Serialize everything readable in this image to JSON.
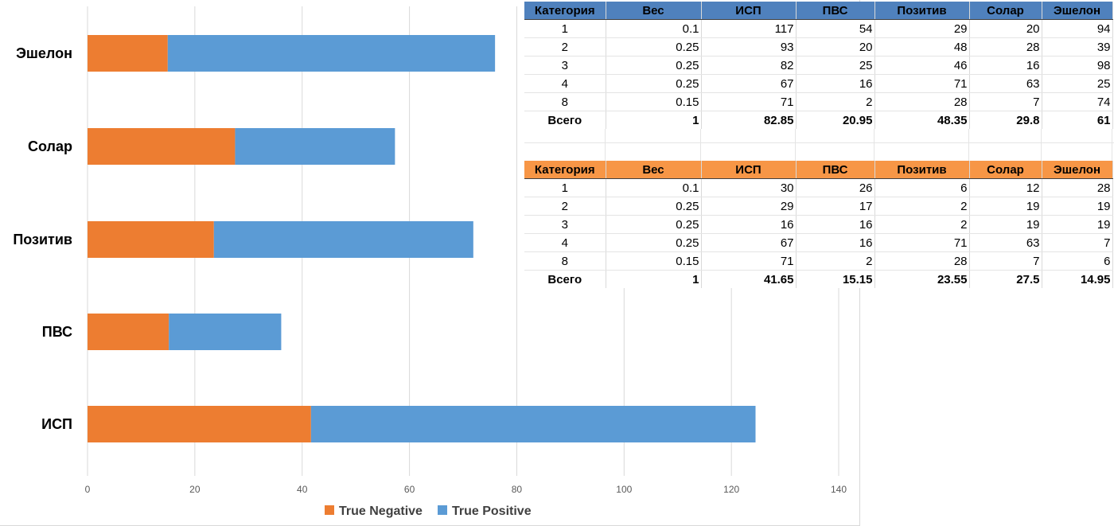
{
  "chart_data": {
    "type": "bar",
    "orientation": "horizontal",
    "stacked": true,
    "categories": [
      "ИСП",
      "ПВС",
      "Позитив",
      "Солар",
      "Эшелон"
    ],
    "series": [
      {
        "name": "True Negative",
        "values": [
          41.65,
          15.15,
          23.55,
          27.5,
          14.95
        ],
        "color": "#ed7d31"
      },
      {
        "name": "True Positive",
        "values": [
          82.85,
          20.95,
          48.35,
          29.8,
          61
        ],
        "color": "#5b9bd5"
      }
    ],
    "xlim": [
      0,
      140
    ],
    "xticks": [
      "0",
      "20",
      "40",
      "60",
      "80",
      "100",
      "120",
      "140"
    ],
    "grid": "vertical",
    "legend_position": "bottom"
  },
  "tables": [
    {
      "header_color": "#4f81bd",
      "columns": [
        "Категория",
        "Вес",
        "ИСП",
        "ПВС",
        "Позитив",
        "Солар",
        "Эшелон"
      ],
      "rows": [
        [
          "1",
          "0.1",
          "117",
          "54",
          "29",
          "20",
          "94"
        ],
        [
          "2",
          "0.25",
          "93",
          "20",
          "48",
          "28",
          "39"
        ],
        [
          "3",
          "0.25",
          "82",
          "25",
          "46",
          "16",
          "98"
        ],
        [
          "4",
          "0.25",
          "67",
          "16",
          "71",
          "63",
          "25"
        ],
        [
          "8",
          "0.15",
          "71",
          "2",
          "28",
          "7",
          "74"
        ]
      ],
      "total": [
        "Всего",
        "1",
        "82.85",
        "20.95",
        "48.35",
        "29.8",
        "61"
      ]
    },
    {
      "header_color": "#f79646",
      "columns": [
        "Категория",
        "Вес",
        "ИСП",
        "ПВС",
        "Позитив",
        "Солар",
        "Эшелон"
      ],
      "rows": [
        [
          "1",
          "0.1",
          "30",
          "26",
          "6",
          "12",
          "28"
        ],
        [
          "2",
          "0.25",
          "29",
          "17",
          "2",
          "19",
          "19"
        ],
        [
          "3",
          "0.25",
          "16",
          "16",
          "2",
          "19",
          "19"
        ],
        [
          "4",
          "0.25",
          "67",
          "16",
          "71",
          "63",
          "7"
        ],
        [
          "8",
          "0.15",
          "71",
          "2",
          "28",
          "7",
          "6"
        ]
      ],
      "total": [
        "Всего",
        "1",
        "41.65",
        "15.15",
        "23.55",
        "27.5",
        "14.95"
      ]
    }
  ]
}
